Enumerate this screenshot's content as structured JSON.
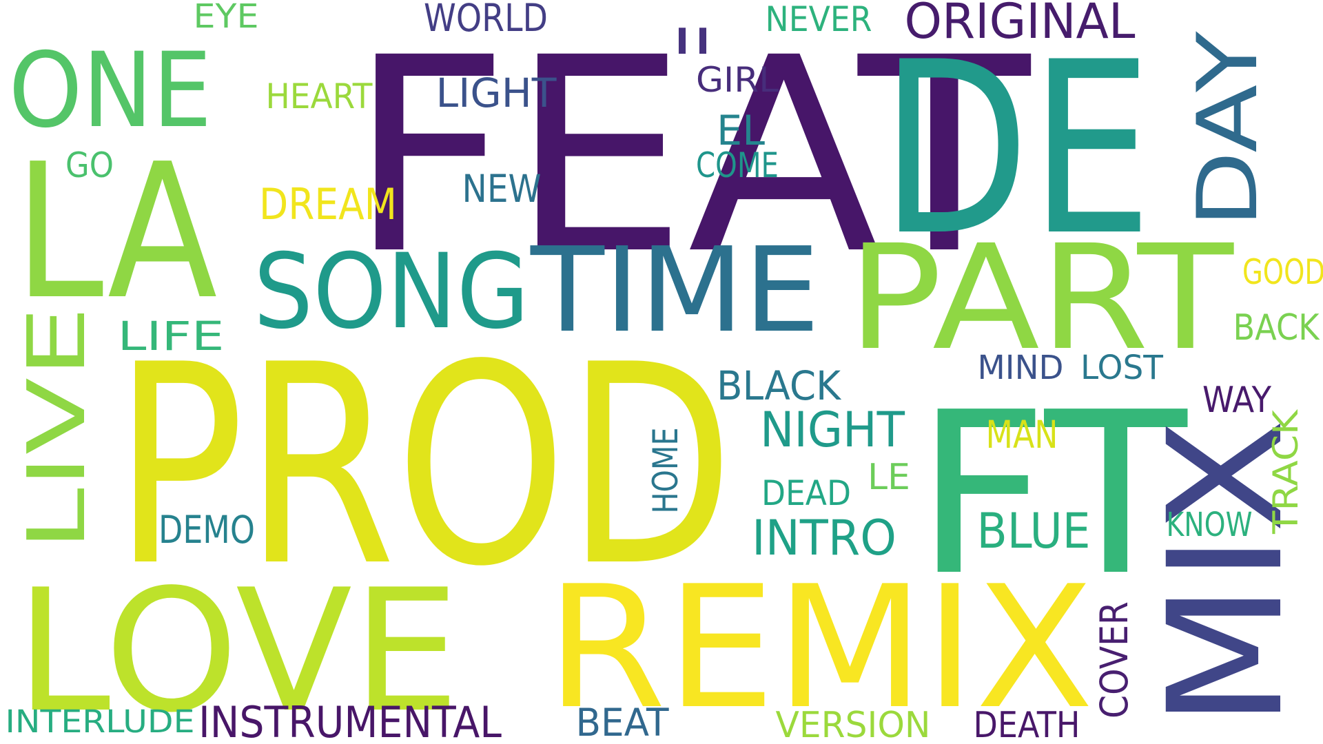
{
  "words": [
    {
      "text": "FEAT",
      "color": "#471669"
    },
    {
      "text": "DE",
      "color": "#219a8b"
    },
    {
      "text": "PROD",
      "color": "#e1e41b"
    },
    {
      "text": "LA",
      "color": "#8fd744"
    },
    {
      "text": "FT",
      "color": "#35b779"
    },
    {
      "text": "LOVE",
      "color": "#bde22b"
    },
    {
      "text": "REMIX",
      "color": "#f8e622"
    },
    {
      "text": "MIX",
      "color": "#404688"
    },
    {
      "text": "PART",
      "color": "#8fd744"
    },
    {
      "text": "TIME",
      "color": "#2c718e"
    },
    {
      "text": "SONG",
      "color": "#1f9a8a"
    },
    {
      "text": "ONE",
      "color": "#54c568"
    },
    {
      "text": "LIVE",
      "color": "#8fd744"
    },
    {
      "text": "DAY",
      "color": "#2f6a8d"
    },
    {
      "text": "ORIGINAL",
      "color": "#461c6c"
    },
    {
      "text": "NIGHT",
      "color": "#1f9a8a"
    },
    {
      "text": "INTRO",
      "color": "#1fa187"
    },
    {
      "text": "BLUE",
      "color": "#29af7f"
    },
    {
      "text": "INSTRUMENTAL",
      "color": "#481668"
    },
    {
      "text": "BLACK",
      "color": "#2a788e"
    },
    {
      "text": "LIGHT",
      "color": "#3b528b"
    },
    {
      "text": "DREAM",
      "color": "#f1e51d"
    },
    {
      "text": "WORLD",
      "color": "#433e85"
    },
    {
      "text": "NEVER",
      "color": "#2db27d"
    },
    {
      "text": "EYE",
      "color": "#5ec962"
    },
    {
      "text": "HEART",
      "color": "#9bd93c"
    },
    {
      "text": "GO",
      "color": "#4ac16d"
    },
    {
      "text": "NEW",
      "color": "#2c728e"
    },
    {
      "text": "LIFE",
      "color": "#35b779"
    },
    {
      "text": "II",
      "color": "#46327e"
    },
    {
      "text": "GIRL",
      "color": "#472d7b"
    },
    {
      "text": "EL",
      "color": "#25848e"
    },
    {
      "text": "COME",
      "color": "#1f958b"
    },
    {
      "text": "DEMO",
      "color": "#26828e"
    },
    {
      "text": "HOME",
      "color": "#2a768e"
    },
    {
      "text": "DEAD",
      "color": "#22a785"
    },
    {
      "text": "LE",
      "color": "#6ccd5a"
    },
    {
      "text": "MIND",
      "color": "#3b528b"
    },
    {
      "text": "LOST",
      "color": "#2a788e"
    },
    {
      "text": "WAY",
      "color": "#481a6c"
    },
    {
      "text": "MAN",
      "color": "#d8e219"
    },
    {
      "text": "GOOD",
      "color": "#f1e51d"
    },
    {
      "text": "BACK",
      "color": "#7ad151"
    },
    {
      "text": "TRACK",
      "color": "#8fd744"
    },
    {
      "text": "KNOW",
      "color": "#2cb17e"
    },
    {
      "text": "COVER",
      "color": "#481f70"
    },
    {
      "text": "BEAT",
      "color": "#31688e"
    },
    {
      "text": "VERSION",
      "color": "#9bd93c"
    },
    {
      "text": "DEATH",
      "color": "#481769"
    },
    {
      "text": "INTERLUDE",
      "color": "#27ad81"
    }
  ]
}
